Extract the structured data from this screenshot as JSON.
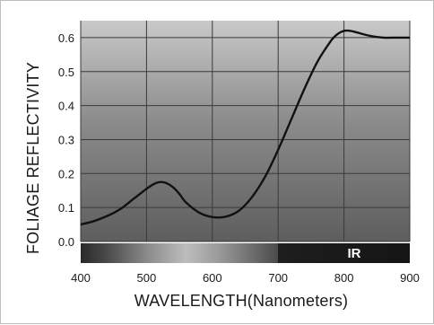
{
  "chart_data": {
    "type": "line",
    "xlabel": "WAVELENGTH(Nanometers)",
    "ylabel": "FOLIAGE  REFLECTIVITY",
    "xlim": [
      400,
      900
    ],
    "ylim": [
      0.0,
      0.65
    ],
    "x_ticks": [
      "400",
      "500",
      "600",
      "700",
      "800",
      "900"
    ],
    "y_ticks": [
      "0.0",
      "0.1",
      "0.2",
      "0.3",
      "0.4",
      "0.5",
      "0.6"
    ],
    "grid": true,
    "spectrum_band": {
      "ir_label": "IR",
      "ir_start": 700
    },
    "series": [
      {
        "x": [
          400,
          420,
          440,
          460,
          480,
          500,
          510,
          520,
          530,
          540,
          550,
          560,
          580,
          600,
          620,
          640,
          660,
          680,
          700,
          720,
          740,
          760,
          780,
          790,
          800,
          810,
          820,
          840,
          860,
          880,
          900
        ],
        "values": [
          0.05,
          0.06,
          0.075,
          0.095,
          0.125,
          0.155,
          0.168,
          0.175,
          0.172,
          0.16,
          0.14,
          0.115,
          0.085,
          0.072,
          0.073,
          0.09,
          0.13,
          0.19,
          0.27,
          0.36,
          0.45,
          0.53,
          0.59,
          0.61,
          0.62,
          0.62,
          0.615,
          0.605,
          0.6,
          0.6,
          0.6
        ]
      }
    ]
  }
}
